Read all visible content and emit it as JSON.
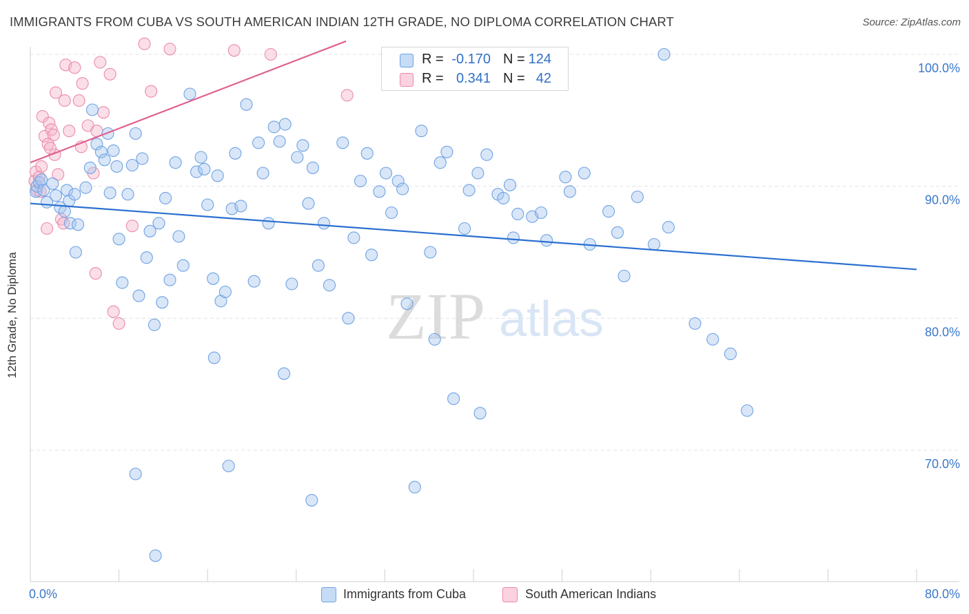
{
  "title": "IMMIGRANTS FROM CUBA VS SOUTH AMERICAN INDIAN 12TH GRADE, NO DIPLOMA CORRELATION CHART",
  "source": "Source: ZipAtlas.com",
  "watermark": {
    "zip": "ZIP",
    "atlas": "atlas"
  },
  "legend": {
    "r_label": "R =",
    "n_label": "N =",
    "rows": [
      {
        "r": "-0.170",
        "n": "124",
        "color": "#a9c8f0"
      },
      {
        "r": "0.341",
        "n": "42",
        "color": "#f5b7cb"
      }
    ]
  },
  "chart_data": {
    "type": "scatter",
    "xlabel": "",
    "ylabel": "12th Grade, No Diploma",
    "xlim": [
      0,
      80
    ],
    "ylim": [
      60,
      104
    ],
    "x_tick_labels": [
      "0.0%",
      "80.0%"
    ],
    "y_ticks": [
      {
        "value": 70,
        "label": "70.0%"
      },
      {
        "value": 80,
        "label": "80.0%"
      },
      {
        "value": 90,
        "label": "90.0%"
      },
      {
        "value": 100,
        "label": "100.0%"
      }
    ],
    "grid": "horizontal dashed",
    "series": [
      {
        "name": "Immigrants from Cuba",
        "color": "#6fa2e3",
        "fill": "#a9c8f0",
        "trend": {
          "x1": 0,
          "y1": 88.7,
          "x2": 80,
          "y2": 83.7,
          "color": "#2b6fd0"
        },
        "points": [
          [
            0.5,
            89.6
          ],
          [
            0.6,
            90.0
          ],
          [
            0.8,
            90.3
          ],
          [
            1.0,
            90.5
          ],
          [
            1.2,
            89.7
          ],
          [
            1.5,
            88.8
          ],
          [
            2.0,
            90.2
          ],
          [
            2.3,
            89.3
          ],
          [
            2.7,
            88.4
          ],
          [
            3.1,
            88.1
          ],
          [
            3.3,
            89.7
          ],
          [
            3.5,
            88.9
          ],
          [
            3.6,
            87.2
          ],
          [
            4.0,
            89.4
          ],
          [
            4.1,
            85.0
          ],
          [
            4.3,
            87.1
          ],
          [
            5.0,
            89.9
          ],
          [
            5.4,
            91.4
          ],
          [
            5.6,
            95.8
          ],
          [
            6.0,
            93.2
          ],
          [
            6.4,
            92.6
          ],
          [
            6.7,
            92.0
          ],
          [
            7.0,
            94.0
          ],
          [
            7.2,
            89.5
          ],
          [
            7.5,
            92.7
          ],
          [
            7.8,
            91.5
          ],
          [
            8.0,
            86.0
          ],
          [
            8.3,
            82.7
          ],
          [
            8.8,
            89.4
          ],
          [
            9.2,
            91.6
          ],
          [
            9.5,
            94.0
          ],
          [
            9.8,
            81.7
          ],
          [
            10.1,
            92.1
          ],
          [
            10.5,
            84.6
          ],
          [
            10.8,
            86.6
          ],
          [
            11.2,
            79.5
          ],
          [
            11.6,
            87.2
          ],
          [
            11.9,
            81.2
          ],
          [
            12.2,
            89.1
          ],
          [
            12.6,
            82.9
          ],
          [
            13.1,
            91.8
          ],
          [
            13.4,
            86.2
          ],
          [
            13.8,
            84.0
          ],
          [
            14.4,
            97.0
          ],
          [
            15.0,
            91.1
          ],
          [
            15.4,
            92.2
          ],
          [
            15.7,
            91.3
          ],
          [
            16.0,
            88.6
          ],
          [
            16.5,
            83.0
          ],
          [
            16.9,
            90.8
          ],
          [
            17.2,
            81.3
          ],
          [
            17.6,
            82.0
          ],
          [
            18.2,
            88.3
          ],
          [
            18.5,
            92.5
          ],
          [
            19.0,
            88.5
          ],
          [
            19.5,
            96.2
          ],
          [
            20.2,
            82.8
          ],
          [
            20.6,
            93.3
          ],
          [
            21.0,
            91.0
          ],
          [
            21.5,
            87.2
          ],
          [
            22.0,
            94.5
          ],
          [
            22.5,
            93.4
          ],
          [
            23.0,
            94.7
          ],
          [
            23.6,
            82.6
          ],
          [
            24.1,
            92.2
          ],
          [
            24.6,
            93.1
          ],
          [
            25.1,
            88.7
          ],
          [
            25.5,
            91.4
          ],
          [
            26.0,
            84.0
          ],
          [
            26.5,
            87.2
          ],
          [
            27.0,
            82.5
          ],
          [
            28.2,
            93.3
          ],
          [
            28.7,
            80.0
          ],
          [
            29.2,
            86.1
          ],
          [
            29.8,
            90.4
          ],
          [
            30.4,
            92.5
          ],
          [
            30.8,
            84.8
          ],
          [
            31.5,
            89.6
          ],
          [
            32.1,
            91.0
          ],
          [
            32.6,
            88.0
          ],
          [
            33.2,
            90.4
          ],
          [
            33.6,
            89.8
          ],
          [
            34.0,
            81.1
          ],
          [
            35.3,
            94.2
          ],
          [
            36.1,
            85.0
          ],
          [
            36.5,
            78.4
          ],
          [
            37.0,
            91.8
          ],
          [
            37.6,
            92.6
          ],
          [
            38.2,
            73.9
          ],
          [
            39.2,
            86.8
          ],
          [
            39.6,
            89.7
          ],
          [
            40.4,
            91.0
          ],
          [
            41.2,
            92.4
          ],
          [
            42.2,
            89.4
          ],
          [
            42.7,
            89.1
          ],
          [
            43.3,
            90.1
          ],
          [
            43.6,
            86.1
          ],
          [
            44.0,
            87.9
          ],
          [
            45.3,
            87.7
          ],
          [
            46.1,
            88.0
          ],
          [
            46.6,
            85.9
          ],
          [
            48.3,
            90.7
          ],
          [
            48.7,
            89.6
          ],
          [
            50.0,
            91.0
          ],
          [
            50.5,
            85.6
          ],
          [
            52.2,
            88.1
          ],
          [
            53.0,
            86.5
          ],
          [
            53.6,
            83.2
          ],
          [
            54.8,
            89.2
          ],
          [
            56.3,
            85.6
          ],
          [
            57.2,
            100.0
          ],
          [
            57.6,
            86.9
          ],
          [
            60.0,
            79.6
          ],
          [
            61.6,
            78.4
          ],
          [
            63.2,
            77.3
          ],
          [
            64.7,
            73.0
          ],
          [
            11.3,
            62.0
          ],
          [
            17.9,
            68.8
          ],
          [
            25.4,
            66.2
          ],
          [
            34.7,
            67.2
          ],
          [
            9.5,
            68.2
          ],
          [
            16.6,
            77.0
          ],
          [
            22.9,
            75.8
          ],
          [
            40.6,
            72.8
          ]
        ]
      },
      {
        "name": "South American Indians",
        "color": "#ec8aa9",
        "fill": "#f5b7cb",
        "trend": {
          "x1": 0,
          "y1": 91.8,
          "x2": 28.5,
          "y2": 101.0,
          "color": "#e0628e"
        },
        "points": [
          [
            0.4,
            90.4
          ],
          [
            0.5,
            91.1
          ],
          [
            0.6,
            89.7
          ],
          [
            0.8,
            90.7
          ],
          [
            1.0,
            91.5
          ],
          [
            1.1,
            95.3
          ],
          [
            1.3,
            93.8
          ],
          [
            1.5,
            86.8
          ],
          [
            1.7,
            94.8
          ],
          [
            1.9,
            94.3
          ],
          [
            2.1,
            93.9
          ],
          [
            2.3,
            97.1
          ],
          [
            2.5,
            90.9
          ],
          [
            2.8,
            87.5
          ],
          [
            3.1,
            96.5
          ],
          [
            3.2,
            99.2
          ],
          [
            3.5,
            94.2
          ],
          [
            4.0,
            99.0
          ],
          [
            4.4,
            96.5
          ],
          [
            4.7,
            97.8
          ],
          [
            5.2,
            94.6
          ],
          [
            5.7,
            91.0
          ],
          [
            6.0,
            94.2
          ],
          [
            6.6,
            95.6
          ],
          [
            7.2,
            98.5
          ],
          [
            7.5,
            80.5
          ],
          [
            8.0,
            79.6
          ],
          [
            9.2,
            87.0
          ],
          [
            10.3,
            100.8
          ],
          [
            10.9,
            97.2
          ],
          [
            12.6,
            100.4
          ],
          [
            18.4,
            100.3
          ],
          [
            21.7,
            100.0
          ],
          [
            28.6,
            96.9
          ],
          [
            6.3,
            99.4
          ],
          [
            2.2,
            92.4
          ],
          [
            1.6,
            93.2
          ],
          [
            3.0,
            87.2
          ],
          [
            4.6,
            93.0
          ],
          [
            5.9,
            83.4
          ],
          [
            1.8,
            92.9
          ],
          [
            0.9,
            89.6
          ]
        ]
      }
    ]
  }
}
